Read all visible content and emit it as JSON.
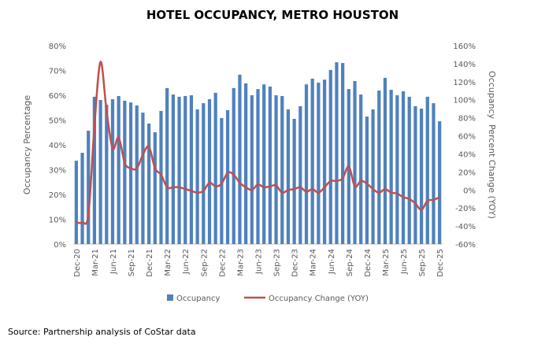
{
  "chart_data": {
    "type": "bar+line",
    "title": "HOTEL OCCUPANCY, METRO HOUSTON",
    "ylabel": "Occupancy Percentage",
    "y2label": "Occupancy  Percent Change (YOY)",
    "ylim": [
      0,
      80
    ],
    "y2lim": [
      -60,
      160
    ],
    "yticks": [
      "0%",
      "10%",
      "20%",
      "30%",
      "40%",
      "50%",
      "60%",
      "70%",
      "80%"
    ],
    "y2ticks": [
      "-60%",
      "-40%",
      "-20%",
      "0%",
      "20%",
      "40%",
      "60%",
      "80%",
      "100%",
      "120%",
      "140%",
      "160%"
    ],
    "xtick_labels": [
      "Dec-20",
      "Mar-21",
      "Jun-21",
      "Sep-21",
      "Dec-21",
      "Mar-22",
      "Jun-22",
      "Sep-22",
      "Dec-22",
      "Mar-23",
      "Jun-23",
      "Sep-23",
      "Dec-23",
      "Mar-24",
      "Jun-24",
      "Sep-24",
      "Dec-24",
      "Mar-25",
      "Jun-25",
      "Sep-25",
      "Dec-25"
    ],
    "grid": false,
    "legend_position": "bottom",
    "series": [
      {
        "name": "Occupancy",
        "type": "bar",
        "axis": "left",
        "color": "#4F81BD",
        "values": [
          33.6,
          36.8,
          45.7,
          59.4,
          58.1,
          56.2,
          58.4,
          59.7,
          57.8,
          57.1,
          55.9,
          53.0,
          48.6,
          45.1,
          53.7,
          62.9,
          60.3,
          59.4,
          59.7,
          60.0,
          54.3,
          56.8,
          58.4,
          61.0,
          50.8,
          54.0,
          62.9,
          68.3,
          64.8,
          60.0,
          62.5,
          64.4,
          63.5,
          60.0,
          59.7,
          54.3,
          50.5,
          55.6,
          64.4,
          66.7,
          65.1,
          66.3,
          70.2,
          73.3,
          73.0,
          62.5,
          65.7,
          60.3,
          51.4,
          54.3,
          61.9,
          67.0,
          62.2,
          60.0,
          61.6,
          59.4,
          55.6,
          54.6,
          59.4,
          56.8,
          49.5
        ]
      },
      {
        "name": "Occupancy Change (YOY)",
        "type": "line",
        "axis": "right",
        "color": "#C0504D",
        "values": [
          -36,
          -36,
          -27,
          71,
          142,
          88,
          46,
          58,
          30,
          24,
          24,
          39,
          48,
          24,
          17,
          3,
          3,
          3,
          1,
          -1,
          -3,
          -1,
          8,
          4,
          7,
          19,
          17,
          8,
          3,
          0,
          6,
          3,
          4,
          5,
          -3,
          0,
          1,
          3,
          -2,
          1,
          -3,
          3,
          10,
          10,
          13,
          26,
          4,
          10,
          7,
          1,
          -3,
          1,
          -3,
          -4,
          -8,
          -10,
          -15,
          -22,
          -12,
          -11,
          -8
        ]
      }
    ]
  },
  "legend": {
    "items": [
      "Occupancy",
      "Occupancy Change (YOY)"
    ]
  },
  "source": "Source: Partnership analysis of CoStar data"
}
